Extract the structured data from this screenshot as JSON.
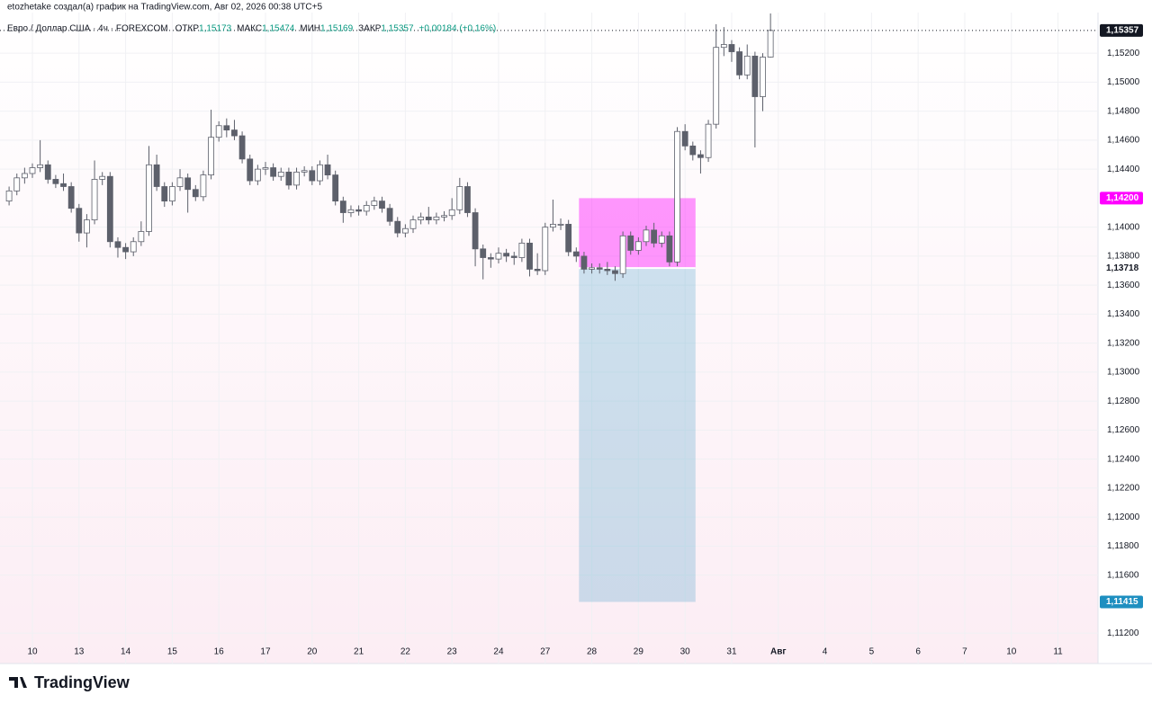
{
  "header": "etozhetake создал(а) график на TradingView.com, Авг 02, 2026 00:38 UTC+5",
  "brand": "TradingView",
  "legend": {
    "symbol": "Евро / Доллар США · 4ч · FOREXCOM",
    "items": [
      {
        "label": "ОТКР",
        "value": "1,15173"
      },
      {
        "label": "МАКС",
        "value": "1,15474"
      },
      {
        "label": "МИН",
        "value": "1,15169"
      },
      {
        "label": "ЗАКР",
        "value": "1,15357"
      }
    ],
    "change": "+0,00184 (+0,16%)"
  },
  "chart_data": {
    "type": "candlestick",
    "categories": [
      null,
      null,
      null,
      "10",
      null,
      null,
      null,
      null,
      null,
      "13",
      null,
      null,
      null,
      null,
      null,
      "14",
      null,
      null,
      null,
      null,
      null,
      "15",
      null,
      null,
      null,
      null,
      null,
      "16",
      null,
      null,
      null,
      null,
      null,
      "17",
      null,
      null,
      null,
      null,
      null,
      "20",
      null,
      null,
      null,
      null,
      null,
      "21",
      null,
      null,
      null,
      null,
      null,
      "22",
      null,
      null,
      null,
      null,
      null,
      "23",
      null,
      null,
      null,
      null,
      null,
      "24",
      null,
      null,
      null,
      null,
      null,
      "27",
      null,
      null,
      null,
      null,
      null,
      "28",
      null,
      null,
      null,
      null,
      null,
      "29",
      null,
      null,
      null,
      null,
      null,
      "30",
      null,
      null,
      null,
      null,
      null,
      "31",
      null,
      null,
      null,
      null,
      null
    ],
    "future_days": [
      "Авг",
      "4",
      "5",
      "6",
      "7",
      "10",
      "11"
    ],
    "open": [
      1.1418,
      1.1425,
      1.1434,
      1.1437,
      1.1441,
      1.1443,
      1.1433,
      1.143,
      1.1428,
      1.1413,
      1.1396,
      1.1405,
      1.1433,
      1.1435,
      1.139,
      1.1386,
      1.1383,
      1.139,
      1.1397,
      1.1443,
      1.1428,
      1.1418,
      1.1428,
      1.1434,
      1.1426,
      1.1421,
      1.1436,
      1.1462,
      1.147,
      1.1467,
      1.1463,
      1.1447,
      1.1432,
      1.144,
      1.1441,
      1.1435,
      1.1438,
      1.1429,
      1.1438,
      1.1439,
      1.1432,
      1.1443,
      1.1436,
      1.1418,
      1.141,
      1.1412,
      1.1411,
      1.1415,
      1.1418,
      1.1413,
      1.1404,
      1.1396,
      1.1399,
      1.1405,
      1.1407,
      1.1405,
      1.1407,
      1.1408,
      1.1412,
      1.1428,
      1.141,
      1.1385,
      1.1379,
      1.1378,
      1.1382,
      1.138,
      1.1379,
      1.1389,
      1.1371,
      1.137,
      1.14,
      1.1402,
      1.1402,
      1.1383,
      1.138,
      1.1371,
      1.1372,
      1.1371,
      1.137,
      1.1368,
      1.1394,
      1.1384,
      1.139,
      1.1398,
      1.1389,
      1.1394,
      1.1376,
      1.1466,
      1.1456,
      1.145,
      1.1448,
      1.1471,
      1.1524,
      1.1526,
      1.1521,
      1.1505,
      1.1518,
      1.149,
      1.15173
    ],
    "high": [
      1.1428,
      1.1437,
      1.1441,
      1.1444,
      1.146,
      1.1446,
      1.1436,
      1.1437,
      1.1431,
      1.1416,
      1.1409,
      1.1446,
      1.1438,
      1.1438,
      1.1393,
      1.1389,
      1.1393,
      1.1404,
      1.1456,
      1.145,
      1.1431,
      1.1431,
      1.144,
      1.1437,
      1.1429,
      1.1439,
      1.1481,
      1.1473,
      1.1475,
      1.1474,
      1.1466,
      1.145,
      1.1443,
      1.1445,
      1.1444,
      1.1441,
      1.1441,
      1.1441,
      1.1442,
      1.1442,
      1.1446,
      1.145,
      1.1439,
      1.1421,
      1.1415,
      1.1415,
      1.1418,
      1.1421,
      1.1421,
      1.1416,
      1.1407,
      1.1402,
      1.1408,
      1.141,
      1.1414,
      1.141,
      1.1411,
      1.142,
      1.1434,
      1.1431,
      1.1413,
      1.1388,
      1.1382,
      1.1386,
      1.1385,
      1.1383,
      1.1392,
      1.1392,
      1.1382,
      1.1403,
      1.1419,
      1.1406,
      1.1405,
      1.1386,
      1.1383,
      1.1375,
      1.1375,
      1.1376,
      1.1373,
      1.1397,
      1.1397,
      1.1393,
      1.1401,
      1.1403,
      1.1397,
      1.1397,
      1.1469,
      1.1471,
      1.1459,
      1.1453,
      1.1474,
      1.154,
      1.1538,
      1.1529,
      1.1524,
      1.1526,
      1.1521,
      1.152,
      1.15474
    ],
    "low": [
      1.1415,
      1.1422,
      1.143,
      1.1434,
      1.1438,
      1.143,
      1.1427,
      1.1425,
      1.141,
      1.139,
      1.1386,
      1.1402,
      1.1429,
      1.1386,
      1.1379,
      1.1378,
      1.138,
      1.1387,
      1.1394,
      1.1425,
      1.1414,
      1.1415,
      1.1425,
      1.141,
      1.1418,
      1.1418,
      1.1433,
      1.1459,
      1.1462,
      1.146,
      1.1444,
      1.1429,
      1.1429,
      1.1436,
      1.1432,
      1.1432,
      1.1426,
      1.1426,
      1.1435,
      1.1429,
      1.1429,
      1.1433,
      1.1415,
      1.1403,
      1.1407,
      1.1408,
      1.1408,
      1.1412,
      1.141,
      1.1401,
      1.1393,
      1.1393,
      1.1396,
      1.1402,
      1.1402,
      1.1402,
      1.1404,
      1.1405,
      1.1409,
      1.1407,
      1.1373,
      1.1364,
      1.1372,
      1.1375,
      1.1376,
      1.1374,
      1.1376,
      1.1366,
      1.1367,
      1.1367,
      1.1397,
      1.1398,
      1.138,
      1.1376,
      1.1368,
      1.1368,
      1.1368,
      1.1367,
      1.1363,
      1.1365,
      1.1381,
      1.1381,
      1.1387,
      1.1386,
      1.1386,
      1.1373,
      1.1373,
      1.1453,
      1.1446,
      1.1437,
      1.1445,
      1.1468,
      1.1518,
      1.1514,
      1.1502,
      1.1502,
      1.1455,
      1.148,
      1.15169
    ],
    "close": [
      1.1425,
      1.1434,
      1.1437,
      1.1441,
      1.1443,
      1.1433,
      1.143,
      1.1428,
      1.1413,
      1.1396,
      1.1405,
      1.1433,
      1.1435,
      1.139,
      1.1386,
      1.1383,
      1.139,
      1.1397,
      1.1443,
      1.1428,
      1.1418,
      1.1428,
      1.1434,
      1.1426,
      1.1421,
      1.1436,
      1.1462,
      1.147,
      1.1467,
      1.1463,
      1.1447,
      1.1432,
      1.144,
      1.1441,
      1.1435,
      1.1438,
      1.1429,
      1.1438,
      1.1439,
      1.1432,
      1.1443,
      1.1436,
      1.1418,
      1.141,
      1.1412,
      1.1411,
      1.1415,
      1.1418,
      1.1413,
      1.1404,
      1.1396,
      1.1399,
      1.1405,
      1.1407,
      1.1405,
      1.1407,
      1.1408,
      1.1412,
      1.1428,
      1.141,
      1.1385,
      1.1379,
      1.1378,
      1.1382,
      1.138,
      1.1379,
      1.1389,
      1.1371,
      1.137,
      1.14,
      1.1402,
      1.1402,
      1.1383,
      1.138,
      1.1371,
      1.1372,
      1.1371,
      1.137,
      1.1368,
      1.1394,
      1.1384,
      1.139,
      1.1398,
      1.1389,
      1.1394,
      1.1376,
      1.1466,
      1.1456,
      1.145,
      1.1448,
      1.1471,
      1.1524,
      1.1526,
      1.1521,
      1.1505,
      1.1518,
      1.149,
      1.15173,
      1.15357
    ],
    "up_color": "#ffffff",
    "down_color": "#5d606b",
    "outline_color": "#5d606b",
    "ylim": [
      1.1099,
      1.1548
    ],
    "yticks": [
      {
        "value": 1.152,
        "label": "1,15200"
      },
      {
        "value": 1.15,
        "label": "1,15000"
      },
      {
        "value": 1.148,
        "label": "1,14800"
      },
      {
        "value": 1.146,
        "label": "1,14600"
      },
      {
        "value": 1.144,
        "label": "1,14400"
      },
      {
        "value": 1.14,
        "label": "1,14000"
      },
      {
        "value": 1.138,
        "label": "1,13800"
      },
      {
        "value": 1.136,
        "label": "1,13600"
      },
      {
        "value": 1.134,
        "label": "1,13400"
      },
      {
        "value": 1.132,
        "label": "1,13200"
      },
      {
        "value": 1.13,
        "label": "1,13000"
      },
      {
        "value": 1.128,
        "label": "1,12800"
      },
      {
        "value": 1.126,
        "label": "1,12600"
      },
      {
        "value": 1.124,
        "label": "1,12400"
      },
      {
        "value": 1.122,
        "label": "1,12200"
      },
      {
        "value": 1.12,
        "label": "1,12000"
      },
      {
        "value": 1.118,
        "label": "1,11800"
      },
      {
        "value": 1.116,
        "label": "1,11600"
      },
      {
        "value": 1.112,
        "label": "1,11200"
      }
    ],
    "grid": true,
    "last_price": {
      "value": 1.15357,
      "label": "1,15357",
      "color": "#131722"
    },
    "position": {
      "start": 73,
      "end": 88,
      "target": {
        "value": 1.142,
        "label": "1,14200",
        "color": "#ff00ff"
      },
      "entry": {
        "value": 1.13718,
        "label": "1,13718",
        "color": "#ffffff"
      },
      "stop": {
        "value": 1.11415,
        "label": "1,11415",
        "color": "#1e8fc0"
      }
    }
  }
}
